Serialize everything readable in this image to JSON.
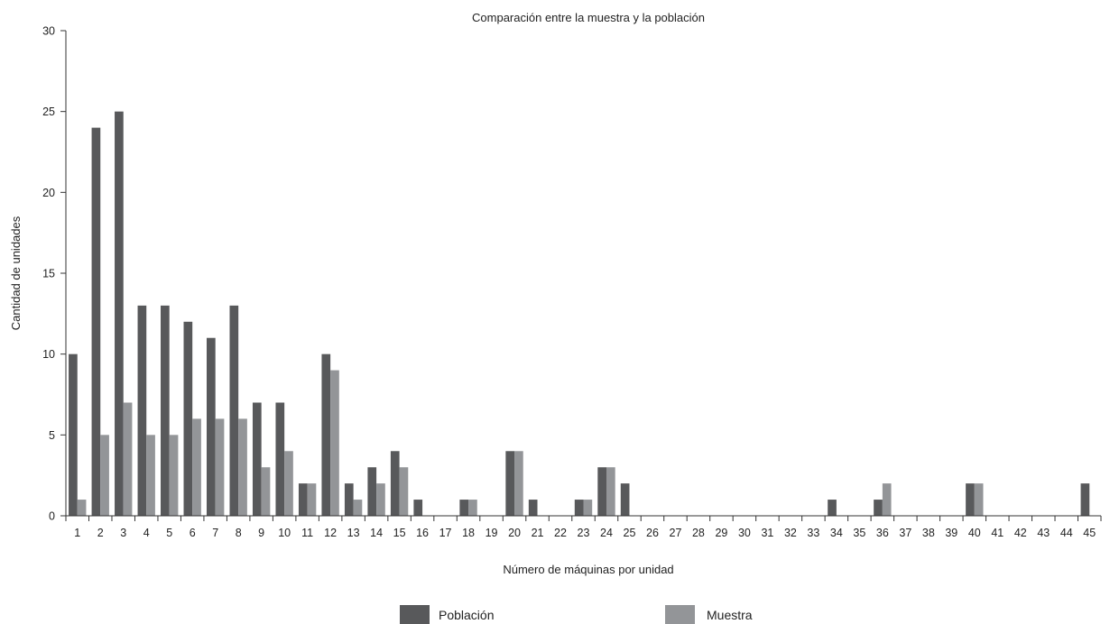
{
  "chart_data": {
    "type": "bar",
    "title": "Comparación entre la muestra y la población",
    "xlabel": "Número de máquinas por unidad",
    "ylabel": "Cantidad de unidades",
    "ylim": [
      0,
      30
    ],
    "yticks": [
      0,
      5,
      10,
      15,
      20,
      25,
      30
    ],
    "grid": false,
    "legend_position": "bottom",
    "categories": [
      "1",
      "2",
      "3",
      "4",
      "5",
      "6",
      "7",
      "8",
      "9",
      "10",
      "11",
      "12",
      "13",
      "14",
      "15",
      "16",
      "17",
      "18",
      "19",
      "20",
      "21",
      "22",
      "23",
      "24",
      "25",
      "26",
      "27",
      "28",
      "29",
      "30",
      "31",
      "32",
      "33",
      "34",
      "35",
      "36",
      "37",
      "38",
      "39",
      "40",
      "41",
      "42",
      "43",
      "44",
      "45"
    ],
    "series": [
      {
        "name": "Población",
        "color": "#58595b",
        "values": [
          10,
          24,
          25,
          13,
          13,
          12,
          11,
          13,
          7,
          7,
          2,
          10,
          2,
          3,
          4,
          1,
          0,
          1,
          0,
          4,
          1,
          0,
          1,
          3,
          2,
          0,
          0,
          0,
          0,
          0,
          0,
          0,
          0,
          1,
          0,
          1,
          0,
          0,
          0,
          2,
          0,
          0,
          0,
          0,
          2
        ]
      },
      {
        "name": "Muestra",
        "color": "#939598",
        "values": [
          1,
          5,
          7,
          5,
          5,
          6,
          6,
          6,
          3,
          4,
          2,
          9,
          1,
          2,
          3,
          0,
          0,
          1,
          0,
          4,
          0,
          0,
          1,
          3,
          0,
          0,
          0,
          0,
          0,
          0,
          0,
          0,
          0,
          0,
          0,
          2,
          0,
          0,
          0,
          2,
          0,
          0,
          0,
          0,
          0
        ]
      }
    ]
  }
}
